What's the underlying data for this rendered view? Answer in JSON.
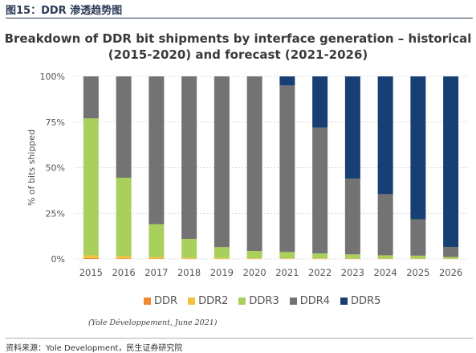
{
  "figure": {
    "caption": "图15：DDR 渗透趋势图",
    "credit": "(Yole Développement, June 2021)",
    "source_note": "资料来源：Yole Development，民生证券研究院"
  },
  "chart_data": {
    "type": "bar",
    "stacked": true,
    "title_line1": "Breakdown of DDR bit shipments by interface generation – historical",
    "title_line2": "(2015-2020) and forecast (2021-2026)",
    "ylabel": "% of bits shipped",
    "xlabel": "",
    "ylim": [
      0,
      100
    ],
    "yticks": [
      "0%",
      "25%",
      "50%",
      "75%",
      "100%"
    ],
    "grid": true,
    "legend_position": "bottom",
    "categories": [
      "2015",
      "2016",
      "2017",
      "2018",
      "2019",
      "2020",
      "2021",
      "2022",
      "2023",
      "2024",
      "2025",
      "2026"
    ],
    "series": [
      {
        "name": "DDR",
        "color": "#f28b30",
        "values": [
          0.5,
          0.3,
          0.2,
          0.1,
          0.1,
          0.1,
          0.1,
          0.1,
          0.1,
          0.1,
          0.1,
          0.0
        ]
      },
      {
        "name": "DDR2",
        "color": "#f5c33b",
        "values": [
          1.5,
          1.2,
          0.8,
          0.5,
          0.4,
          0.3,
          0.2,
          0.2,
          0.1,
          0.1,
          0.1,
          0.1
        ]
      },
      {
        "name": "DDR3",
        "color": "#a9cf5c",
        "values": [
          75,
          43,
          18,
          10.4,
          6,
          4,
          3.5,
          2.7,
          2.3,
          1.8,
          1.6,
          1.0
        ]
      },
      {
        "name": "DDR4",
        "color": "#737373",
        "values": [
          23,
          55.5,
          81,
          89,
          93.5,
          95.6,
          91.2,
          69,
          41.5,
          33.5,
          20,
          5.5
        ]
      },
      {
        "name": "DDR5",
        "color": "#173f73",
        "values": [
          0,
          0,
          0,
          0,
          0,
          0,
          5,
          28,
          56,
          64.5,
          78.2,
          93.4
        ]
      }
    ]
  }
}
